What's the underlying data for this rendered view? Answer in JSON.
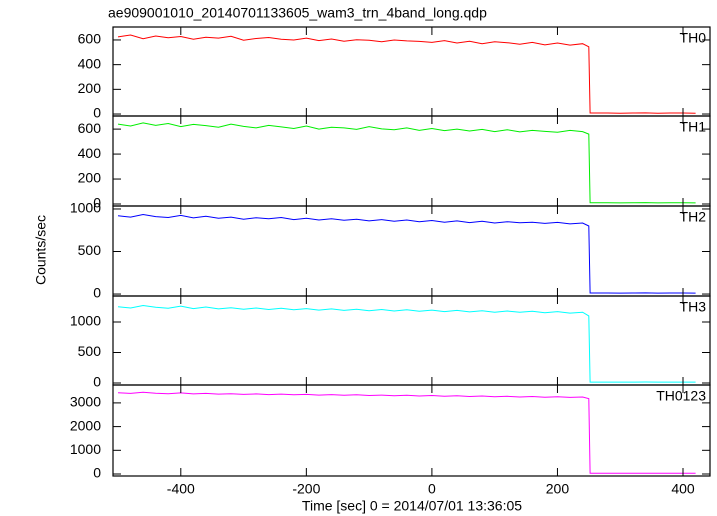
{
  "chart_data": {
    "type": "line",
    "title": "ae909001010_20140701133605_wam3_trn_4band_long.qdp",
    "xlabel": "Time [sec] 0 = 2014/07/01 13:36:05",
    "ylabel": "Counts/sec",
    "xlim": [
      -508,
      443
    ],
    "xticks": [
      -400,
      -200,
      0,
      200,
      400
    ],
    "x": [
      -500,
      -480,
      -460,
      -440,
      -420,
      -400,
      -380,
      -360,
      -340,
      -320,
      -300,
      -280,
      -260,
      -240,
      -220,
      -200,
      -180,
      -160,
      -140,
      -120,
      -100,
      -80,
      -60,
      -40,
      -20,
      0,
      20,
      40,
      60,
      80,
      100,
      120,
      140,
      160,
      180,
      200,
      220,
      240,
      250,
      252,
      280,
      300,
      320,
      340,
      360,
      380,
      400,
      420
    ],
    "series": [
      {
        "name": "TH0",
        "color": "#ff0000",
        "ylim": [
          -16,
          705
        ],
        "yticks": [
          0,
          200,
          400,
          600
        ],
        "values": [
          625,
          640,
          610,
          632,
          618,
          628,
          605,
          622,
          615,
          630,
          598,
          612,
          620,
          605,
          600,
          615,
          595,
          608,
          590,
          602,
          598,
          585,
          600,
          592,
          588,
          580,
          595,
          575,
          590,
          570,
          585,
          578,
          565,
          580,
          560,
          575,
          558,
          570,
          545,
          8,
          8,
          7,
          8,
          9,
          7,
          8,
          8,
          7
        ]
      },
      {
        "name": "TH1",
        "color": "#00ee00",
        "ylim": [
          -16,
          705
        ],
        "yticks": [
          0,
          200,
          400,
          600
        ],
        "values": [
          640,
          625,
          650,
          630,
          645,
          620,
          638,
          628,
          615,
          640,
          622,
          610,
          630,
          618,
          605,
          625,
          600,
          615,
          610,
          598,
          620,
          602,
          595,
          610,
          590,
          605,
          588,
          600,
          585,
          598,
          580,
          595,
          578,
          590,
          582,
          575,
          590,
          580,
          560,
          10,
          10,
          9,
          10,
          11,
          9,
          10,
          10,
          9
        ]
      },
      {
        "name": "TH2",
        "color": "#0000ff",
        "ylim": [
          -23,
          1035
        ],
        "yticks": [
          0,
          500,
          1000
        ],
        "values": [
          920,
          905,
          935,
          910,
          900,
          925,
          895,
          915,
          890,
          905,
          880,
          898,
          885,
          900,
          875,
          890,
          870,
          885,
          868,
          880,
          860,
          875,
          855,
          870,
          850,
          865,
          845,
          860,
          840,
          855,
          835,
          850,
          838,
          845,
          830,
          842,
          825,
          835,
          800,
          12,
          12,
          11,
          12,
          13,
          11,
          12,
          12,
          11
        ]
      },
      {
        "name": "TH3",
        "color": "#00ffff",
        "ylim": [
          -33,
          1426
        ],
        "yticks": [
          0,
          500,
          1000
        ],
        "values": [
          1250,
          1230,
          1270,
          1240,
          1225,
          1260,
          1220,
          1245,
          1215,
          1235,
          1210,
          1230,
          1205,
          1225,
          1200,
          1220,
          1195,
          1215,
          1190,
          1210,
          1185,
          1205,
          1180,
          1200,
          1175,
          1195,
          1170,
          1190,
          1165,
          1185,
          1160,
          1180,
          1158,
          1175,
          1150,
          1170,
          1145,
          1160,
          1100,
          15,
          15,
          14,
          15,
          16,
          14,
          15,
          15,
          14
        ]
      },
      {
        "name": "TH0123",
        "color": "#ff00ff",
        "ylim": [
          -84,
          3755
        ],
        "yticks": [
          0,
          1000,
          2000,
          3000
        ],
        "values": [
          3430,
          3400,
          3450,
          3410,
          3390,
          3420,
          3380,
          3400,
          3370,
          3390,
          3360,
          3380,
          3350,
          3370,
          3340,
          3360,
          3330,
          3350,
          3320,
          3340,
          3310,
          3330,
          3300,
          3320,
          3290,
          3310,
          3280,
          3300,
          3270,
          3290,
          3260,
          3280,
          3250,
          3270,
          3240,
          3260,
          3230,
          3250,
          3180,
          30,
          30,
          28,
          31,
          32,
          29,
          30,
          30,
          29
        ]
      }
    ]
  }
}
